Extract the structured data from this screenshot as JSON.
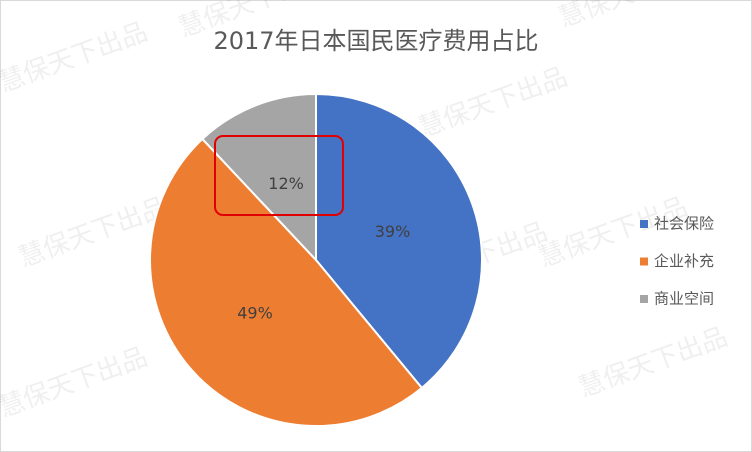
{
  "chart_data": {
    "type": "pie",
    "title": "2017年日本国民医疗费用占比",
    "categories": [
      "社会保险",
      "企业补充",
      "商业空间"
    ],
    "values": [
      39,
      49,
      12
    ],
    "value_labels": [
      "39%",
      "49%",
      "12%"
    ],
    "colors": [
      "#4472c4",
      "#ed7d31",
      "#a5a5a5"
    ],
    "legend": "right",
    "watermark": "慧保天下出品"
  }
}
